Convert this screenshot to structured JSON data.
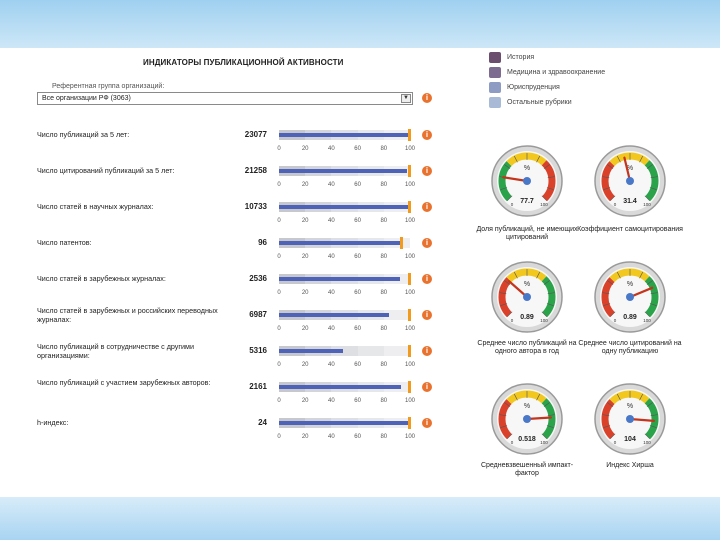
{
  "title": "ИНДИКАТОРЫ ПУБЛИКАЦИОННОЙ АКТИВНОСТИ",
  "legend": [
    {
      "label": "История",
      "color": "#6b4d6e"
    },
    {
      "label": "Медицина и здравоохранение",
      "color": "#7d6c8f"
    },
    {
      "label": "Юриспруденция",
      "color": "#8e9bc2"
    },
    {
      "label": "Остальные рубрики",
      "color": "#a8bad6"
    }
  ],
  "reference_group": {
    "label": "Референтная группа организаций:",
    "value": "Все организации РФ (3063)",
    "dropdown_icon": "chevron-down-icon"
  },
  "axis_ticks": [
    "0",
    "20",
    "40",
    "60",
    "80",
    "100"
  ],
  "rows": [
    {
      "label": "Число публикаций за 5 лет:",
      "value": "23077",
      "percent": 99,
      "marker": 99
    },
    {
      "label": "Число цитирований публикаций за 5 лет:",
      "value": "21258",
      "percent": 98,
      "marker": 99
    },
    {
      "label": "Число статей в научных журналах:",
      "value": "10733",
      "percent": 99,
      "marker": 99
    },
    {
      "label": "Число патентов:",
      "value": "96",
      "percent": 92,
      "marker": 93
    },
    {
      "label": "Число статей в зарубежных журналах:",
      "value": "2536",
      "percent": 92,
      "marker": 99
    },
    {
      "label": "Число статей в зарубежных и российских переводных журналах:",
      "value": "6987",
      "percent": 84,
      "marker": 99
    },
    {
      "label": "Число публикаций в сотрудничестве с другими организациями:",
      "value": "5316",
      "percent": 49,
      "marker": 99
    },
    {
      "label": "Число публикаций с участием зарубежных авторов:",
      "value": "2161",
      "percent": 93,
      "marker": 99
    },
    {
      "label": "h-индекс:",
      "value": "24",
      "percent": 99,
      "marker": 99
    }
  ],
  "gauges": [
    {
      "caption": "Доля публикаций, не имеющих цитирований",
      "unit": "%",
      "value": "77.7",
      "needle_fraction": 0.2,
      "reversed": true
    },
    {
      "caption": "Коэффициент самоцитирования",
      "unit": "%",
      "value": "31.4",
      "needle_fraction": 0.45,
      "reversed": false
    },
    {
      "caption": "Среднее число публикаций на одного автора в год",
      "unit": "%",
      "value": "0.89",
      "needle_fraction": 0.32,
      "reversed": false
    },
    {
      "caption": "Среднее число цитирований на одну публикацию",
      "unit": "%",
      "value": "0.89",
      "needle_fraction": 0.75,
      "reversed": false
    },
    {
      "caption": "Средневзвешенный импакт-фактор",
      "unit": "%",
      "value": "0.518",
      "needle_fraction": 0.82,
      "reversed": false
    },
    {
      "caption": "Индекс Хирша",
      "unit": "%",
      "value": "104",
      "needle_fraction": 0.85,
      "reversed": false
    }
  ],
  "gauge_scale": {
    "min": "0",
    "max": "100"
  }
}
